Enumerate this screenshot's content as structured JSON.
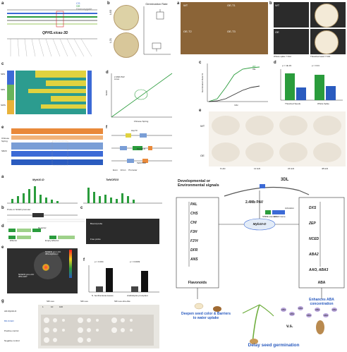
{
  "panel_labels": [
    "a",
    "b",
    "c",
    "d",
    "e",
    "f",
    "g",
    "h",
    "i",
    "j",
    "k"
  ],
  "qtl_label": "QPHS.sicau-3D",
  "legend_a": [
    "CS",
    "SR",
    "Homozygote"
  ],
  "chart_b": {
    "title": "Germination Rate",
    "left_labels": [
      "L63",
      "L21"
    ]
  },
  "panel_c": {
    "side_groups": [
      "SDS",
      "SRS",
      "SWS"
    ]
  },
  "chart_d": {
    "xlabel": "Chinese Spring",
    "ylabel": "SR20",
    "legend": [
      "2.4Mb PAV",
      "Lines"
    ]
  },
  "panel_e": {
    "labels": [
      "Chinese",
      "Spring",
      "SR20"
    ]
  },
  "panel_f": {
    "labels": [
      "Hsp70",
      "Myb10-D",
      "TaMYB10"
    ],
    "legend": [
      "Exon",
      "Intron",
      "Promoter"
    ]
  },
  "top_right": {
    "seed_labels": [
      "WT",
      "OE-T1",
      "OE-T2",
      "OE-T3"
    ],
    "spike_labels": [
      "WT",
      "OE"
    ],
    "spike_caption": [
      "Whole spike 7 DAI",
      "Threshed seed 7 DAI"
    ],
    "chart_c": {
      "xlabel": "DAI",
      "ylabel": "Germination Rate %",
      "series": [
        "WT",
        "OE"
      ]
    },
    "chart_d": {
      "ylabel": "Germination Rate %",
      "pvals": [
        "p = 1E-33",
        "p = 0.01"
      ],
      "categories": [
        "Threshed Seeds",
        "Whole Spike"
      ]
    },
    "grid_rows": [
      "WT",
      "OE"
    ],
    "grid_cols": [
      "6 HAI",
      "12 HAI",
      "24 HAI",
      "48 HAI"
    ]
  },
  "bottom_left": {
    "chart_a_titles": [
      "Myb10-D",
      "TaNCED3"
    ],
    "probe": "Probe in NCED promoter",
    "emsa_labels": [
      "Bound probe",
      "Free probe"
    ],
    "reporter": [
      "Reporter",
      "Effector",
      "Empty Effector",
      "35S",
      "Myb10-D",
      "LUC"
    ],
    "luc_labels": [
      "NCED3 pro-LUC",
      "35S-Myb10-D",
      "NCED3 pro-LUC",
      "35S-GFP"
    ],
    "chart_j": {
      "pvals": [
        "p = 0.004",
        "p = 0.0009"
      ],
      "xlabels": [
        "N. benthamiana leaves",
        "Arabidopsis protoplast"
      ]
    },
    "y2h": {
      "rows": [
        "AD-Myb10-D",
        "BD-NCED",
        "Positive control",
        "Negative control"
      ],
      "cols": [
        "SD/-Leu",
        "SD/-Leu",
        "SD/-Leu-His-Ade"
      ],
      "dils": [
        "1",
        "10",
        "100"
      ]
    }
  },
  "model": {
    "top_left": "Developmental or",
    "top_left2": "Environmental signals",
    "chrom": "3DL",
    "pav": "2.4Mb PAV",
    "gene": "Myb10-D",
    "flav_genes": [
      "PAL",
      "CHS",
      "CHI",
      "F3H",
      "F3'H",
      "DFR",
      "ANS"
    ],
    "flav_box": "Flavonoids",
    "aba_genes": [
      "DXS",
      "ZEP",
      "NCED",
      "ABA2",
      "AAO, ABA3"
    ],
    "aba_box": "ABA",
    "motif": "SMRE element",
    "motif2": "NCED Gene",
    "activation": "Activation",
    "left_outcome": "Deepen seed color & Barriers to water uptake",
    "right_outcome": "Enhances ABA concentration",
    "vs": "v.s.",
    "final": "Delay seed germination",
    "aba_dots": [
      "ABA",
      "ABA",
      "ABA",
      "ABA",
      "ABA",
      "ABA",
      "ABA"
    ]
  }
}
